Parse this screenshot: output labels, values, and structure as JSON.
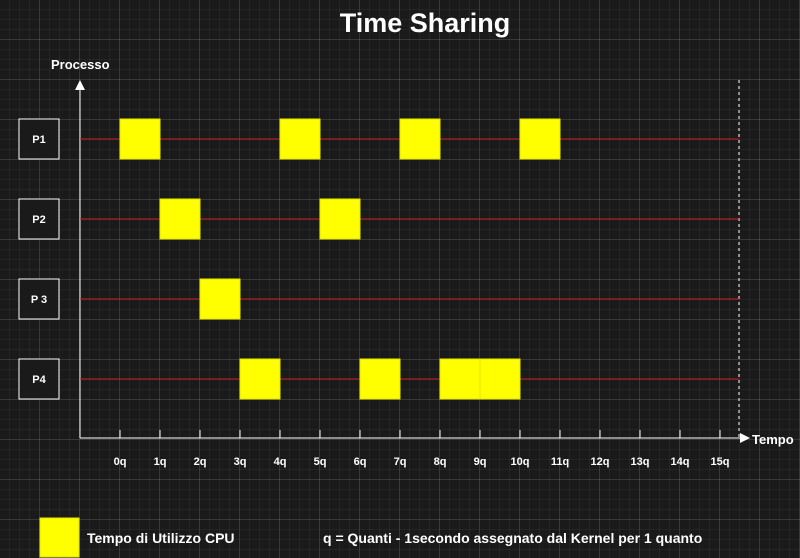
{
  "title": "Time Sharing",
  "y_axis_label": "Processo",
  "x_axis_label": "Tempo",
  "colors": {
    "slot": "#ffff00",
    "slot_border": "#e6e600",
    "timeline": "#cc2222",
    "axis": "#ffffff"
  },
  "ticks": [
    "0q",
    "1q",
    "2q",
    "3q",
    "4q",
    "5q",
    "6q",
    "7q",
    "8q",
    "9q",
    "10q",
    "11q",
    "12q",
    "13q",
    "14q",
    "15q"
  ],
  "processes": [
    {
      "label": "P1",
      "slots": [
        0,
        4,
        7,
        10
      ]
    },
    {
      "label": "P2",
      "slots": [
        1,
        5
      ]
    },
    {
      "label": "P 3",
      "slots": [
        2
      ]
    },
    {
      "label": "P4",
      "slots": [
        3,
        6,
        8,
        9
      ]
    }
  ],
  "legend": {
    "cpu_label": "Tempo di Utilizzo CPU",
    "quanta_note": "q = Quanti - 1secondo assegnato dal Kernel per 1 quanto"
  }
}
